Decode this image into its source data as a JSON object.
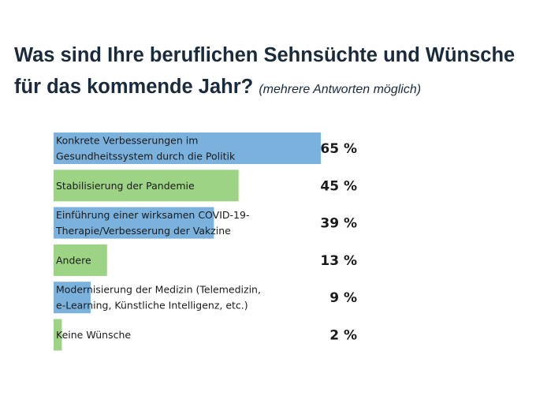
{
  "header": {
    "title": "Was sind Ihre beruflichen Sehnsüchte und Wünsche für das kommende Jahr?",
    "subtitle": "(mehrere Antworten möglich)"
  },
  "colors": {
    "blue": "#7ab2dd",
    "green": "#9dd384",
    "title": "#1a2b3c"
  },
  "chart_data": {
    "type": "bar",
    "orientation": "horizontal",
    "title": "Was sind Ihre beruflichen Sehnsüchte und Wünsche für das kommende Jahr?",
    "subtitle": "(mehrere Antworten möglich)",
    "unit": "%",
    "xlim": [
      0,
      65
    ],
    "grid": false,
    "legend": "none",
    "categories": [
      "Konkrete Verbesserungen im Gesundheitssystem durch die Politik",
      "Stabilisierung der Pandemie",
      "Einführung einer wirksamen COVID-19-Therapie/Verbesserung der Vakzine",
      "Andere",
      "Modernisierung der Medizin (Telemedizin, e-Learning, Künstliche Intelligenz, etc.)",
      "Keine Wünsche"
    ],
    "label_lines": [
      [
        "Konkrete Verbesserungen im",
        "Gesundheitssystem durch die Politik"
      ],
      [
        "Stabilisierung der Pandemie"
      ],
      [
        "Einführung einer wirksamen COVID-19-",
        "Therapie/Verbesserung der Vakzine"
      ],
      [
        "Andere"
      ],
      [
        "Modernisierung der Medizin (Telemedizin,",
        "e-Learning, Künstliche Intelligenz, etc.)"
      ],
      [
        "Keine Wünsche"
      ]
    ],
    "values": [
      65,
      45,
      39,
      13,
      9,
      2
    ],
    "value_labels": [
      "65 %",
      "45 %",
      "39 %",
      "13 %",
      "9 %",
      "2 %"
    ],
    "bar_colors": [
      "#7ab2dd",
      "#9dd384",
      "#7ab2dd",
      "#9dd384",
      "#7ab2dd",
      "#9dd384"
    ]
  }
}
